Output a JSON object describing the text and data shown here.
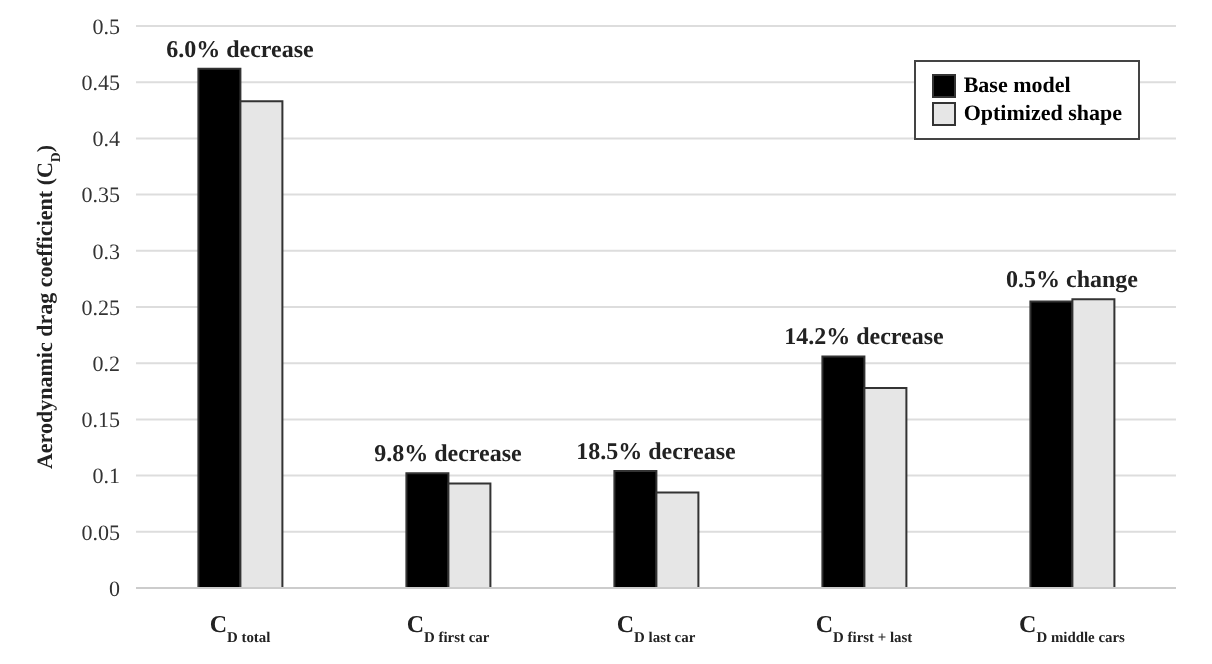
{
  "chart_data": {
    "type": "bar",
    "ylabel": "Aerodynamic drag coefficient (C$_{D}$)",
    "categories": [
      "C$_{D total}$",
      "C$_{D first car}$",
      "C$_{D last car}$",
      "C$_{D first + last}$",
      "C$_{D middle cars}$"
    ],
    "series": [
      {
        "name": "Base model",
        "color": "#000000",
        "values": [
          0.462,
          0.102,
          0.104,
          0.206,
          0.255
        ]
      },
      {
        "name": "Optimized shape",
        "color": "#e6e6e6",
        "values": [
          0.433,
          0.093,
          0.085,
          0.178,
          0.257
        ]
      }
    ],
    "ylim": [
      0,
      0.5
    ],
    "yticks": [
      0,
      0.05,
      0.1,
      0.15,
      0.2,
      0.25,
      0.3,
      0.35,
      0.4,
      0.45,
      0.5
    ],
    "grid": "y",
    "legend": "top right",
    "annotations": [
      {
        "text": "6.0% decrease",
        "x": "C$_{D total}$",
        "y": 0.462
      },
      {
        "text": "9.8% decrease",
        "x": "C$_{D first car}$",
        "y": 0.102
      },
      {
        "text": "18.5% decrease",
        "x": "C$_{D last car}$",
        "y": 0.104
      },
      {
        "text": "14.2% decrease",
        "x": "C$_{D first + last}$",
        "y": 0.206
      },
      {
        "text": "0.5% change",
        "x": "C$_{D middle cars}$",
        "y": 0.257
      }
    ]
  }
}
